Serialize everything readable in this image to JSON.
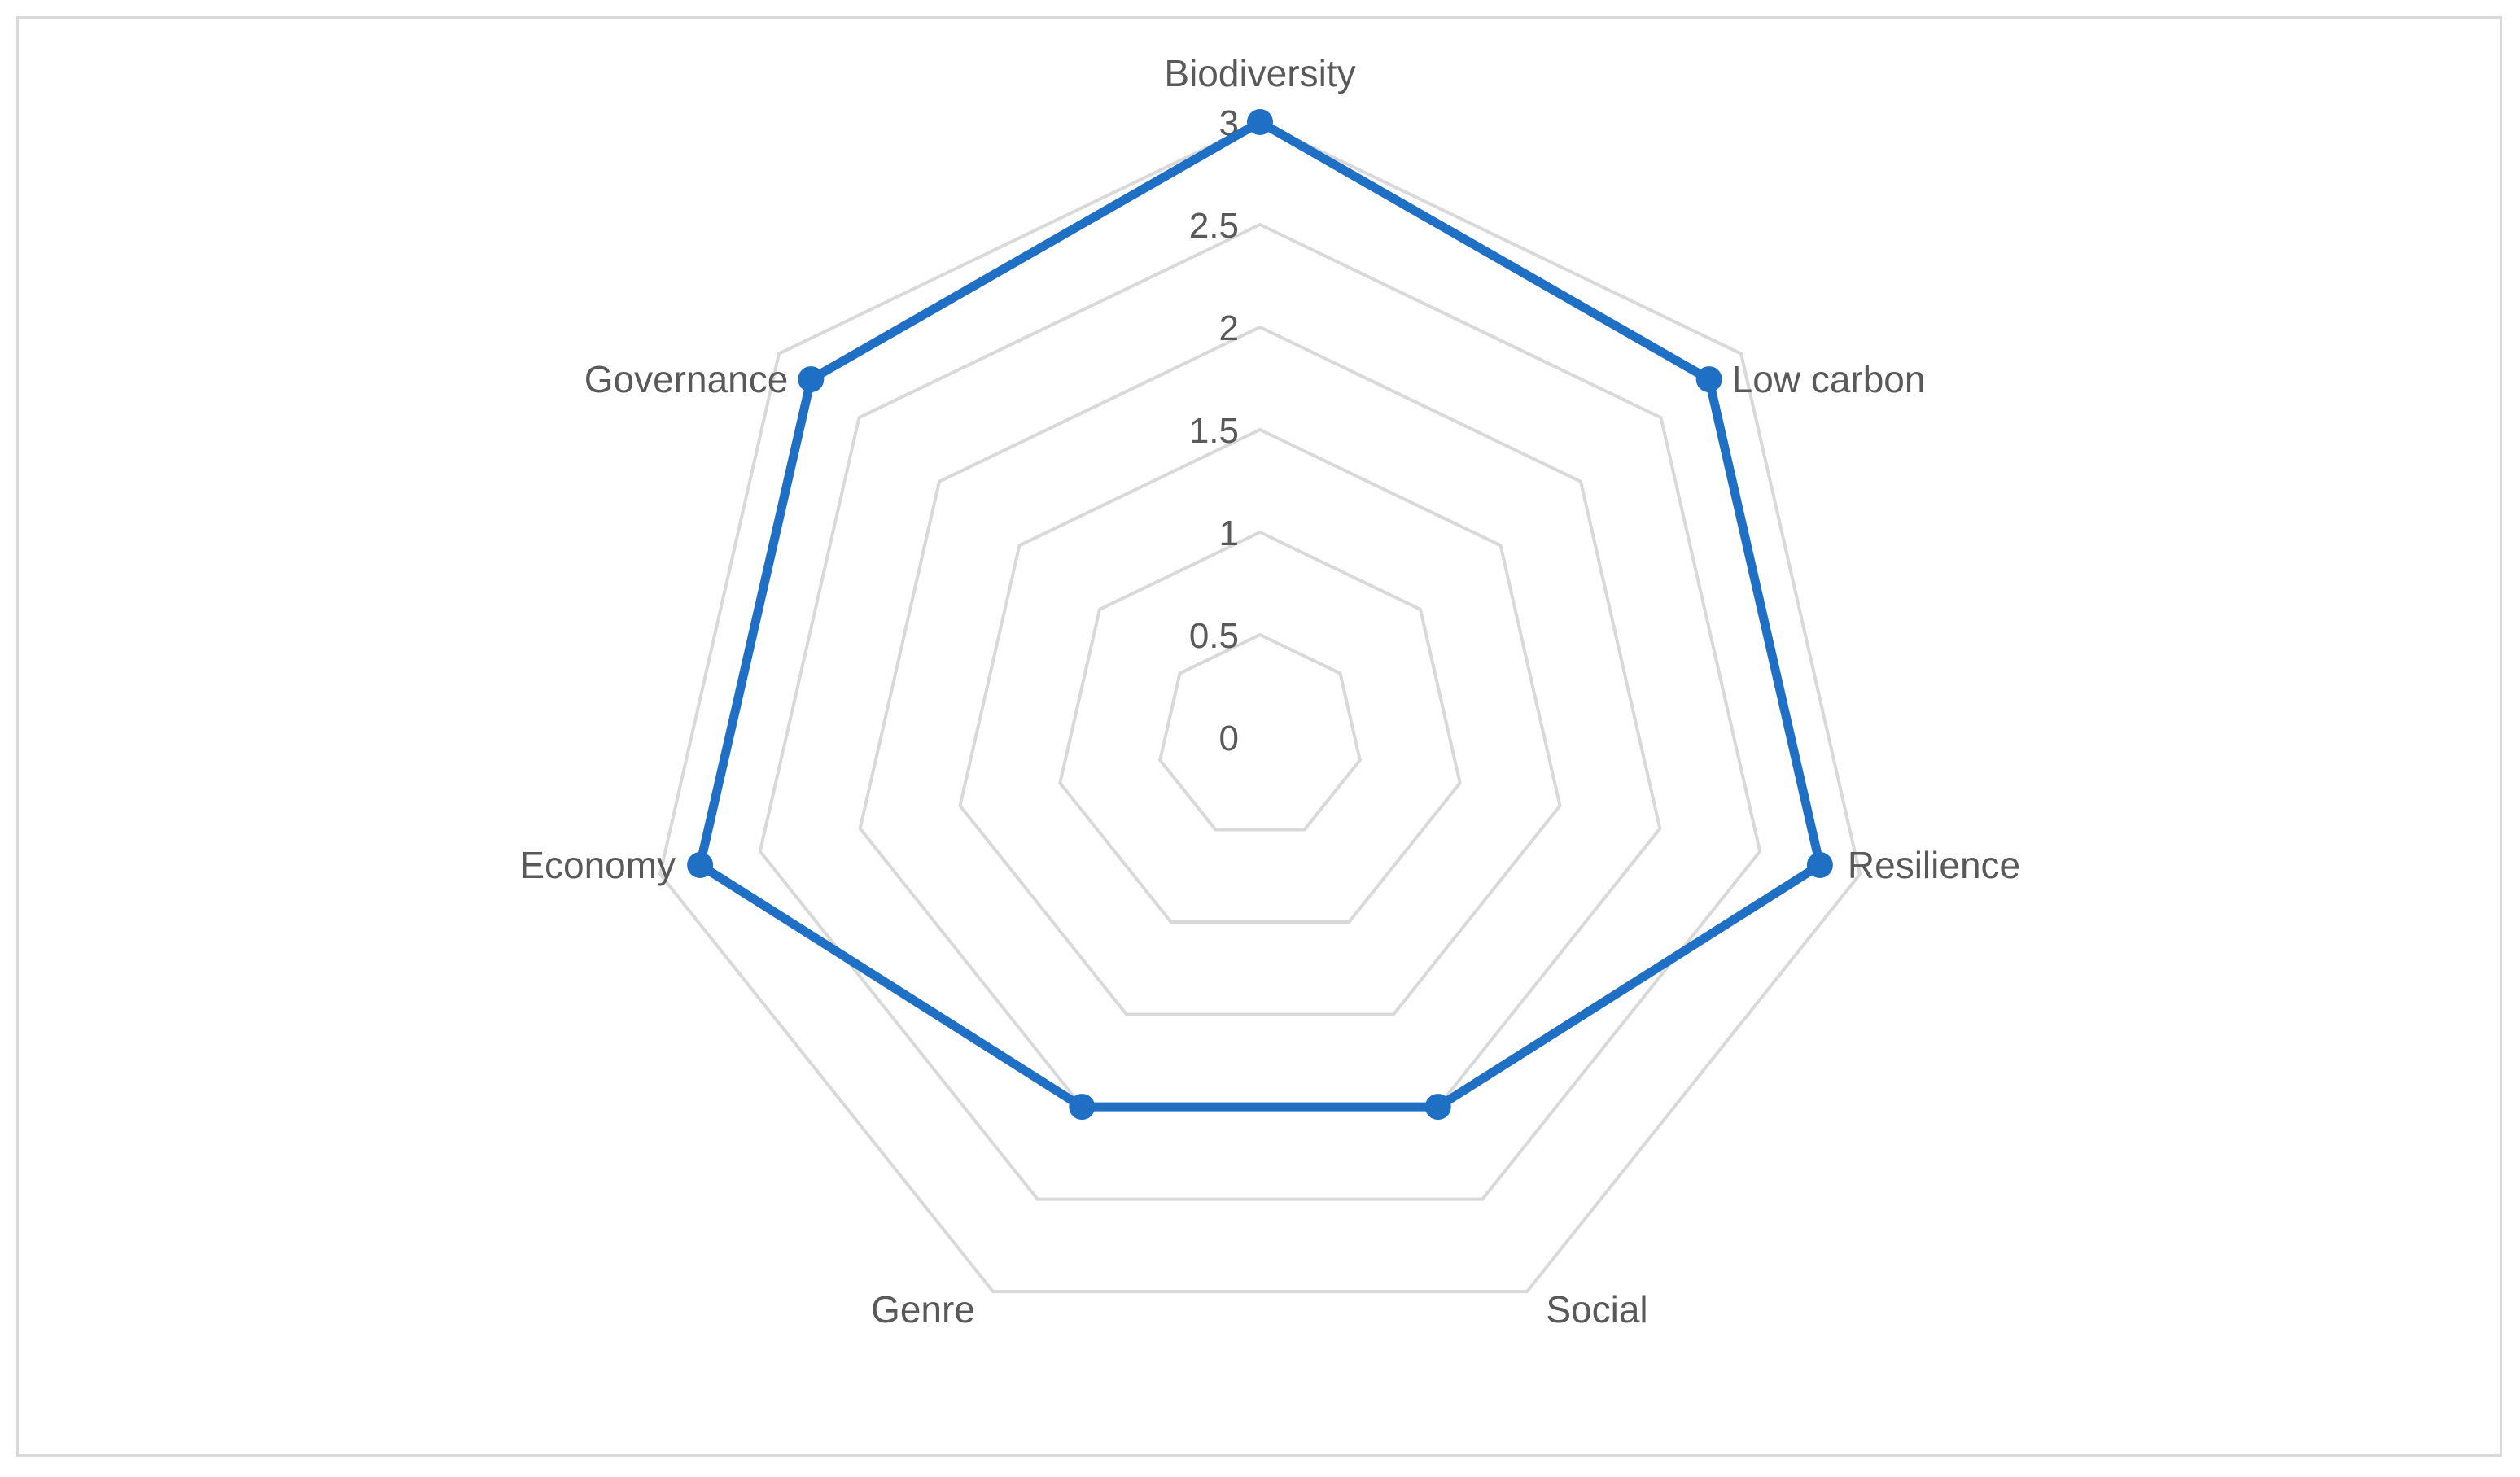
{
  "chart_data": {
    "type": "radar",
    "categories": [
      "Biodiversity",
      "Low carbon",
      "Resilience",
      "Social",
      "Genre",
      "Economy",
      "Governance"
    ],
    "series": [
      {
        "values": [
          3,
          2.8,
          2.8,
          2,
          2,
          2.8,
          2.8
        ],
        "color": "#1f6fc5"
      }
    ],
    "rlim": [
      0,
      3
    ],
    "ticks": [
      "0",
      "0.5",
      "1",
      "1.5",
      "2",
      "2.5",
      "3"
    ],
    "tick_values": [
      0,
      0.5,
      1,
      1.5,
      2,
      2.5,
      3
    ],
    "grid": true,
    "grid_color": "#d9d9d9",
    "legend": "none"
  }
}
